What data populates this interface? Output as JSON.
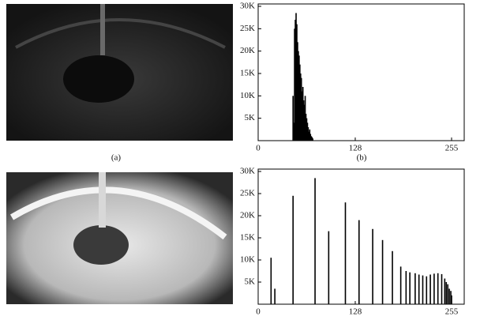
{
  "captions": [
    "(a)",
    "(b)"
  ],
  "chart_data": [
    {
      "type": "bar",
      "color": "#000",
      "x": [
        46,
        47,
        48,
        49,
        50,
        51,
        52,
        53,
        54,
        55,
        56,
        57,
        58,
        59,
        60,
        61,
        62,
        63,
        64,
        65,
        66,
        67,
        68,
        69,
        70,
        71,
        72
      ],
      "values": [
        10000,
        4000,
        25000,
        27000,
        28500,
        26000,
        22000,
        20000,
        19000,
        17000,
        15000,
        14000,
        11000,
        12000,
        9000,
        8000,
        10000,
        6000,
        5000,
        4000,
        3000,
        2000,
        2500,
        1500,
        1000,
        800,
        500
      ],
      "xlim": [
        0,
        255
      ],
      "xticks": [
        0,
        128,
        255
      ],
      "ylim": [
        0,
        30000
      ],
      "yticks": [
        {
          "value": 5000,
          "label": "5K"
        },
        {
          "value": 10000,
          "label": "10K"
        },
        {
          "value": 15000,
          "label": "15K"
        },
        {
          "value": 20000,
          "label": "20K"
        },
        {
          "value": 25000,
          "label": "25K"
        },
        {
          "value": 30000,
          "label": "30K"
        }
      ]
    },
    {
      "type": "bar",
      "color": "#000",
      "x": [
        17,
        22,
        46,
        75,
        93,
        115,
        133,
        151,
        164,
        177,
        188,
        195,
        200,
        207,
        212,
        217,
        222,
        227,
        232,
        237,
        242,
        246,
        248,
        250,
        252,
        254,
        255
      ],
      "values": [
        10500,
        3500,
        24500,
        28500,
        16500,
        23000,
        19000,
        17000,
        14500,
        12000,
        8500,
        7500,
        7200,
        7000,
        6700,
        6500,
        6300,
        6700,
        6900,
        7000,
        6800,
        5800,
        5000,
        4500,
        3500,
        3000,
        2000
      ],
      "xlim": [
        0,
        255
      ],
      "xticks": [
        0,
        128,
        255
      ],
      "ylim": [
        0,
        30000
      ],
      "yticks": [
        {
          "value": 5000,
          "label": "5K"
        },
        {
          "value": 10000,
          "label": "10K"
        },
        {
          "value": 15000,
          "label": "15K"
        },
        {
          "value": 20000,
          "label": "20K"
        },
        {
          "value": 25000,
          "label": "25K"
        },
        {
          "value": 30000,
          "label": "30K"
        }
      ]
    }
  ]
}
